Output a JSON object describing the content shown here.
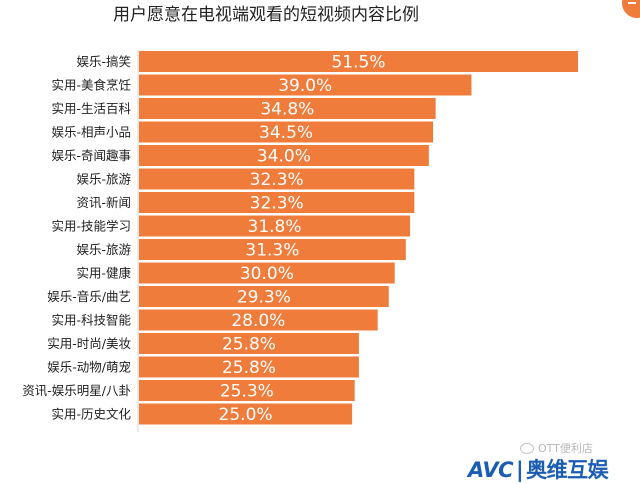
{
  "chart_data": {
    "type": "bar",
    "orientation": "horizontal",
    "title": "用户愿意在电视端观看的短视频内容比例",
    "categories": [
      "娱乐-搞笑",
      "实用-美食烹饪",
      "实用-生活百科",
      "娱乐-相声小品",
      "娱乐-奇闻趣事",
      "娱乐-旅游",
      "资讯-新闻",
      "实用-技能学习",
      "娱乐-旅游",
      "实用-健康",
      "娱乐-音乐/曲艺",
      "实用-科技智能",
      "实用-时尚/美妆",
      "娱乐-动物/萌宠",
      "资讯-娱乐明星/八卦",
      "实用-历史文化"
    ],
    "values": [
      51.5,
      39.0,
      34.8,
      34.5,
      34.0,
      32.3,
      32.3,
      31.8,
      31.3,
      30.0,
      29.3,
      28.0,
      25.8,
      25.8,
      25.3,
      25.0
    ],
    "value_labels": [
      "51.5%",
      "39.0%",
      "34.8%",
      "34.5%",
      "34.0%",
      "32.3%",
      "32.3%",
      "31.8%",
      "31.3%",
      "30.0%",
      "29.3%",
      "28.0%",
      "25.8%",
      "25.8%",
      "25.3%",
      "25.0%"
    ],
    "bar_color": "#f07c3c",
    "xlim": [
      0,
      51.5
    ],
    "grid": false,
    "legend": "none"
  },
  "watermark": {
    "wechat_text": "OTT便利店",
    "brand_en": "AVC",
    "brand_cn": "奥维互娱"
  }
}
